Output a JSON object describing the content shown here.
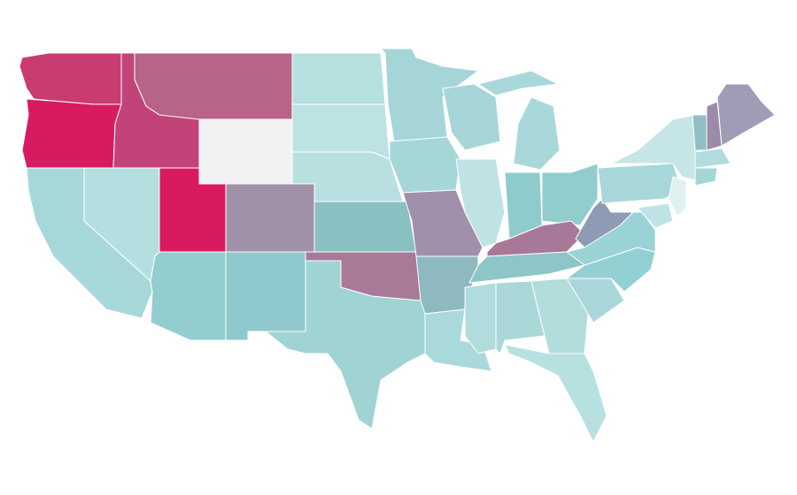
{
  "map": {
    "regions": [
      {
        "color": "#c83c72"
      },
      {
        "color": "#d81b60"
      },
      {
        "color": "#c2437a"
      },
      {
        "color": "#b76488"
      },
      {
        "color": "#f2f2f4"
      },
      {
        "color": "#b6dfe0"
      },
      {
        "color": "#bde2e3"
      },
      {
        "color": "#b8e0e1"
      },
      {
        "color": "#a090a8"
      },
      {
        "color": "#d81b60"
      },
      {
        "color": "#b4dfe0"
      },
      {
        "color": "#a6d8da"
      },
      {
        "color": "#93cdd0"
      },
      {
        "color": "#8fc9cd"
      },
      {
        "color": "#9fd3d4"
      },
      {
        "color": "#a87a98"
      },
      {
        "color": "#8bc0c3"
      },
      {
        "color": "#a6d5d8"
      },
      {
        "color": "#a5d6d8"
      },
      {
        "color": "#a090aa"
      },
      {
        "color": "#8fb9c0"
      },
      {
        "color": "#a9d9da"
      },
      {
        "color": "#a7d6d8"
      },
      {
        "color": "#bfe3e5"
      },
      {
        "color": "#a9d8da"
      },
      {
        "color": "#8ecbcd"
      },
      {
        "color": "#93cccd"
      },
      {
        "color": "#a87899"
      },
      {
        "color": "#8ec5c8"
      },
      {
        "color": "#b1dcdd"
      },
      {
        "color": "#aad8d9"
      },
      {
        "color": "#b3dcdd"
      },
      {
        "color": "#b7e0e1"
      },
      {
        "color": "#a9d7d9"
      },
      {
        "color": "#93d0d3"
      },
      {
        "color": "#9ad3d5"
      },
      {
        "color": "#8f9bb5"
      },
      {
        "color": "#a8d7d9"
      },
      {
        "color": "#c6e5e7"
      },
      {
        "color": "#8fbfc5"
      },
      {
        "color": "#9b8aa8"
      },
      {
        "color": "#9f9cb5"
      },
      {
        "color": "#b2dbde"
      },
      {
        "color": "#a6d5d8"
      },
      {
        "color": "#e0f1f2"
      },
      {
        "color": "#bfe3e5"
      }
    ]
  }
}
